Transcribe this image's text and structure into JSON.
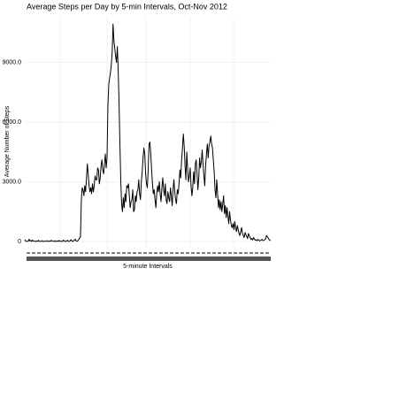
{
  "chart_data": {
    "type": "line",
    "title": "Average Steps per Day by 5-min Intervals, Oct-Nov 2012",
    "x_label": "5-minute Intervals",
    "y_label": "Average Number of Steps",
    "ylim": [
      -400,
      11250
    ],
    "yticks": [
      0,
      {
        "value": 3000,
        "label": "3000.0"
      },
      {
        "value": 6000,
        "label": "6000.0"
      },
      {
        "value": 9000,
        "label": "9000.0"
      }
    ],
    "grid": true,
    "color": "#000000",
    "values": [
      90,
      20,
      7,
      8,
      4,
      110,
      30,
      50,
      0,
      70,
      20,
      15,
      10,
      0,
      30,
      0,
      60,
      10,
      0,
      5,
      40,
      0,
      10,
      20,
      0,
      20,
      40,
      10,
      0,
      30,
      0,
      60,
      20,
      10,
      0,
      40,
      0,
      10,
      30,
      0,
      50,
      20,
      0,
      10,
      0,
      70,
      30,
      10,
      0,
      20,
      60,
      10,
      0,
      40,
      90,
      20,
      0,
      30,
      80,
      120,
      20,
      10,
      40,
      100,
      180,
      220,
      2100,
      2700,
      2600,
      2300,
      2800,
      2500,
      3200,
      3900,
      3400,
      2800,
      2500,
      2700,
      2400,
      2900,
      2500,
      2800,
      3300,
      3100,
      3100,
      3700,
      3600,
      2900,
      3200,
      3800,
      4100,
      3600,
      3400,
      3900,
      4400,
      3700,
      4200,
      6800,
      7900,
      8200,
      8500,
      8900,
      9500,
      10927,
      10100,
      9700,
      9300,
      9000,
      9800,
      8600,
      7000,
      4900,
      3100,
      1900,
      1500,
      2200,
      1700,
      2400,
      2000,
      2800,
      2700,
      2900,
      2300,
      1700,
      2000,
      2100,
      2600,
      1500,
      1600,
      2300,
      2000,
      2500,
      2600,
      3100,
      2400,
      2100,
      3000,
      3500,
      4200,
      4700,
      4400,
      3400,
      2900,
      2700,
      3600,
      4900,
      5000,
      4400,
      3600,
      2900,
      2400,
      2600,
      2100,
      1700,
      2400,
      2800,
      2500,
      3000,
      2400,
      2000,
      2700,
      3200,
      2600,
      2300,
      2900,
      2100,
      1900,
      2500,
      2200,
      2000,
      2700,
      2300,
      1800,
      2600,
      3100,
      2500,
      2100,
      1900,
      2600,
      2400,
      2900,
      3600,
      3200,
      4100,
      4700,
      5400,
      4800,
      3800,
      3100,
      4500,
      3700,
      3000,
      3300,
      3700,
      2800,
      2300,
      2700,
      3500,
      2900,
      3900,
      4100,
      3400,
      2600,
      3200,
      4200,
      3700,
      4000,
      4600,
      3900,
      3300,
      2800,
      3800,
      4400,
      4900,
      4200,
      4800,
      5000,
      5300,
      4900,
      4700,
      4100,
      3500,
      2600,
      2200,
      3100,
      2400,
      1700,
      2100,
      1600,
      2000,
      1500,
      1900,
      2300,
      1400,
      1800,
      1200,
      1700,
      1300,
      900,
      1500,
      1100,
      800,
      700,
      900,
      600,
      1000,
      700,
      500,
      800,
      600,
      400,
      300,
      500,
      700,
      400,
      300,
      200,
      450,
      350,
      250,
      150,
      400,
      300,
      200,
      100,
      150,
      80,
      200,
      120,
      60,
      90,
      40,
      110,
      70,
      30,
      50,
      80,
      100,
      40,
      60,
      90,
      120,
      300,
      250,
      180,
      100,
      60,
      40
    ]
  }
}
